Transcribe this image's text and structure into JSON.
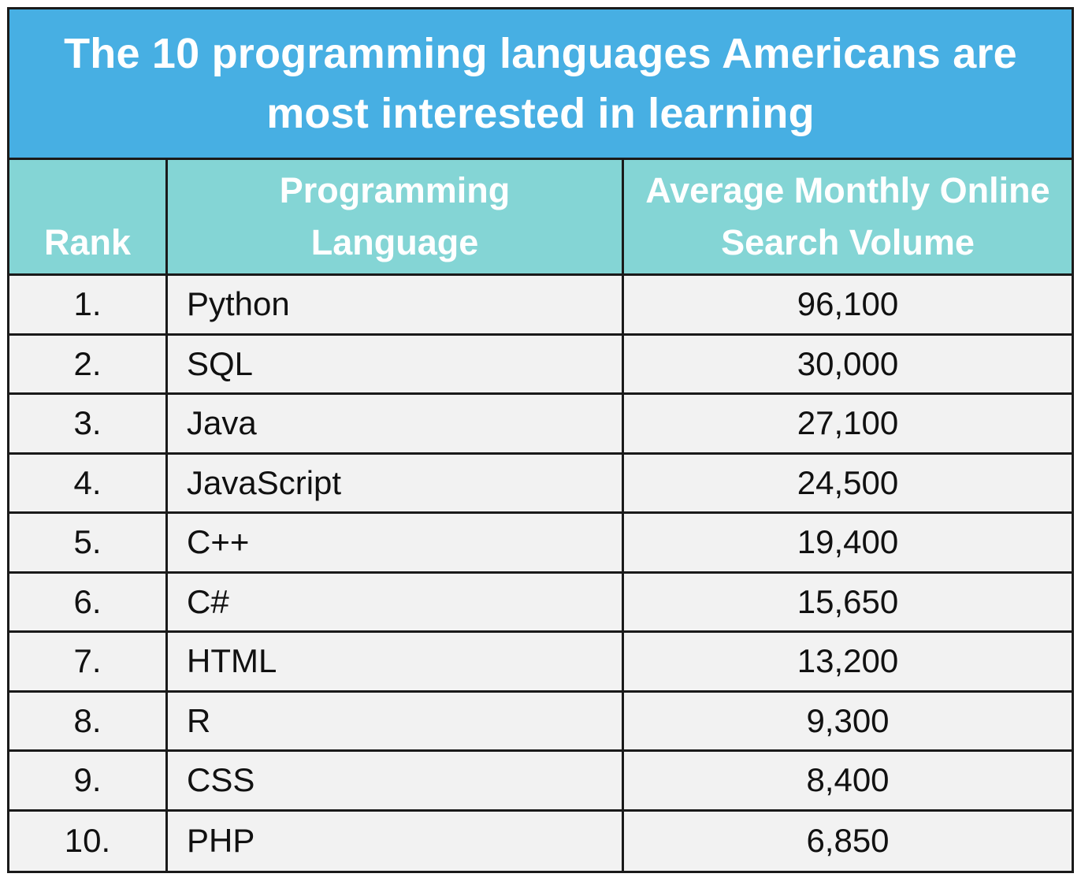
{
  "title": "The 10 programming languages Americans are most interested in learning",
  "headers": {
    "rank": "Rank",
    "language": "Programming Language",
    "volume": "Average Monthly Online Search Volume"
  },
  "colors": {
    "title_bg": "#47afe3",
    "header_bg": "#84d5d5",
    "row_bg": "#f2f2f2",
    "border": "#1a1a1a"
  },
  "chart_data": {
    "type": "table",
    "title": "The 10 programming languages Americans are most interested in learning",
    "columns": [
      "Rank",
      "Programming Language",
      "Average Monthly Online Search Volume"
    ],
    "rows": [
      {
        "rank": "1.",
        "language": "Python",
        "volume": "96,100"
      },
      {
        "rank": "2.",
        "language": "SQL",
        "volume": "30,000"
      },
      {
        "rank": "3.",
        "language": "Java",
        "volume": "27,100"
      },
      {
        "rank": "4.",
        "language": "JavaScript",
        "volume": "24,500"
      },
      {
        "rank": "5.",
        "language": "C++",
        "volume": "19,400"
      },
      {
        "rank": "6.",
        "language": "C#",
        "volume": "15,650"
      },
      {
        "rank": "7.",
        "language": "HTML",
        "volume": "13,200"
      },
      {
        "rank": "8.",
        "language": "R",
        "volume": "9,300"
      },
      {
        "rank": "9.",
        "language": "CSS",
        "volume": "8,400"
      },
      {
        "rank": "10.",
        "language": "PHP",
        "volume": "6,850"
      }
    ]
  }
}
